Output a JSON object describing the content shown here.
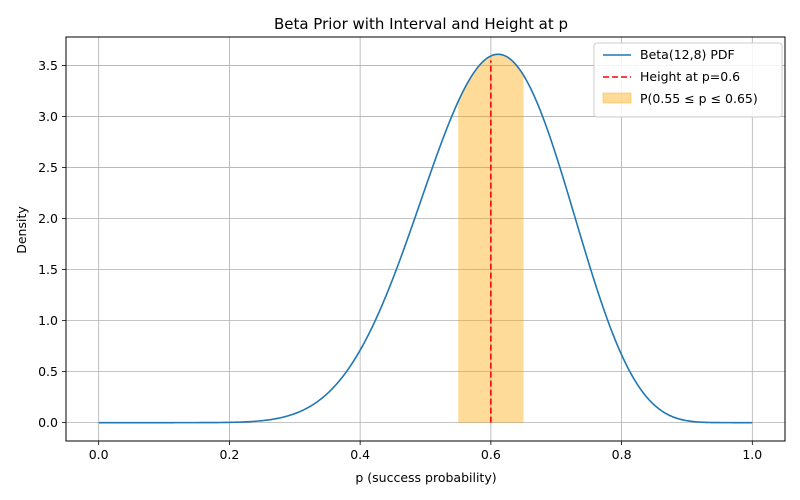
{
  "chart_data": {
    "type": "line",
    "title": "Beta Prior with Interval and Height at p",
    "xlabel": "p (success probability)",
    "ylabel": "Density",
    "xlim": [
      -0.05,
      1.05
    ],
    "ylim": [
      -0.18,
      3.78
    ],
    "xticks": [
      0.0,
      0.2,
      0.4,
      0.6,
      0.8,
      1.0
    ],
    "xtick_labels": [
      "0.0",
      "0.2",
      "0.4",
      "0.6",
      "0.8",
      "1.0"
    ],
    "yticks": [
      0.0,
      0.5,
      1.0,
      1.5,
      2.0,
      2.5,
      3.0,
      3.5
    ],
    "ytick_labels": [
      "0.0",
      "0.5",
      "1.0",
      "1.5",
      "2.0",
      "2.5",
      "3.0",
      "3.5"
    ],
    "grid": true,
    "legend_position": "top-right",
    "series": [
      {
        "name": "Beta(12,8) PDF",
        "kind": "line",
        "distribution": {
          "family": "beta",
          "alpha": 12,
          "beta": 8
        },
        "x_range": [
          0.0,
          1.0
        ],
        "color": "#1f77b4"
      },
      {
        "name": "Height at p=0.6",
        "kind": "vline",
        "x": 0.6,
        "y_range": [
          0.0,
          3.55
        ],
        "color": "#ff0000",
        "style": "dashed"
      },
      {
        "name": "P(0.55 ≤ p ≤ 0.65)",
        "kind": "area",
        "x_range": [
          0.55,
          0.65
        ],
        "color": "#ffa500",
        "opacity": 0.4
      }
    ]
  }
}
